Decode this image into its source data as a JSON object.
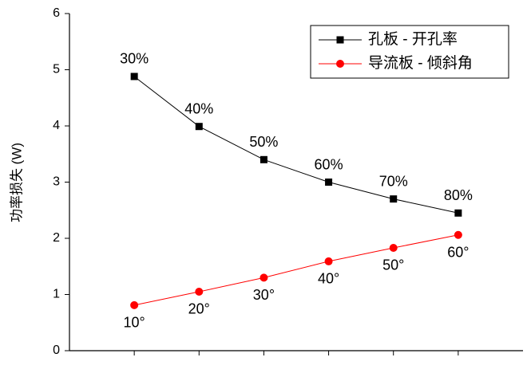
{
  "chart_data": {
    "type": "line",
    "y_label": "功率损失 (W)",
    "x": [
      1,
      2,
      3,
      4,
      5,
      6
    ],
    "xlim": [
      0,
      7
    ],
    "ylim": [
      0,
      6
    ],
    "yticks": [
      0,
      1,
      2,
      3,
      4,
      5,
      6
    ],
    "legend": "top-right",
    "series": [
      {
        "name": "孔板 - 开孔率",
        "color": "#000000",
        "marker": "square",
        "values": [
          4.88,
          3.99,
          3.4,
          3.0,
          2.7,
          2.45
        ],
        "labels": [
          "30%",
          "40%",
          "50%",
          "60%",
          "70%",
          "80%"
        ]
      },
      {
        "name": "导流板 - 倾斜角",
        "color": "#ff0000",
        "marker": "circle",
        "values": [
          0.81,
          1.05,
          1.3,
          1.59,
          1.83,
          2.06
        ],
        "labels": [
          "10°",
          "20°",
          "30°",
          "40°",
          "50°",
          "60°"
        ]
      }
    ]
  }
}
